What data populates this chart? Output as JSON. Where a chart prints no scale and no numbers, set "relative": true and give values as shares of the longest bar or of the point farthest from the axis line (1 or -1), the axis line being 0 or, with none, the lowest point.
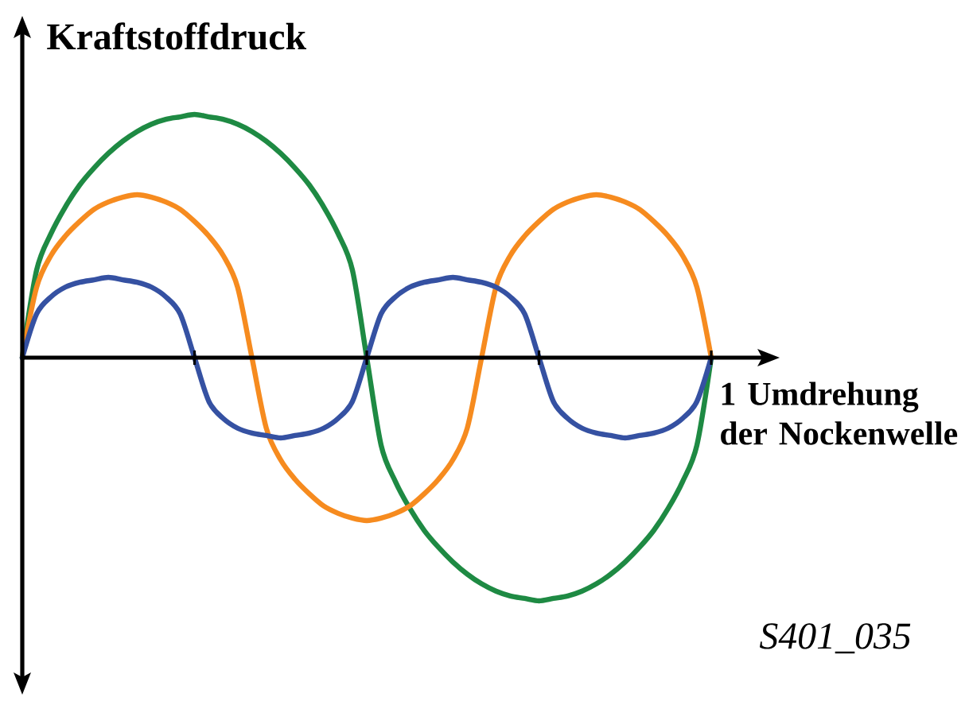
{
  "chart_data": {
    "type": "line",
    "relative": true,
    "ylabel": "Kraftstoffdruck",
    "xlabel": "1 Umdrehung der Nockenwelle",
    "annotations": [
      "S401_035"
    ],
    "marker": "none",
    "line_style": "solid",
    "categories": [
      null,
      null,
      null,
      null,
      null,
      null,
      null,
      null,
      null,
      null,
      null,
      null,
      null,
      null,
      null,
      null,
      null,
      null,
      null,
      null,
      null,
      null,
      null,
      null,
      null,
      null,
      null,
      null,
      null,
      null,
      null,
      null,
      null,
      null,
      null,
      null,
      null,
      null,
      null,
      null,
      null,
      null,
      null,
      null,
      null,
      null,
      null,
      null,
      null
    ],
    "series": [
      {
        "color": "#1e8a43",
        "values": [
          0,
          0.36,
          0.51,
          0.62,
          0.71,
          0.78,
          0.84,
          0.89,
          0.93,
          0.96,
          0.98,
          0.99,
          1,
          0.99,
          0.98,
          0.96,
          0.93,
          0.89,
          0.84,
          0.78,
          0.71,
          0.62,
          0.51,
          0.36,
          0,
          -0.36,
          -0.51,
          -0.62,
          -0.71,
          -0.78,
          -0.84,
          -0.89,
          -0.93,
          -0.96,
          -0.98,
          -0.99,
          -1,
          -0.99,
          -0.98,
          -0.96,
          -0.93,
          -0.89,
          -0.84,
          -0.78,
          -0.71,
          -0.62,
          -0.51,
          -0.36,
          0
        ]
      },
      {
        "color": "#f68b1f",
        "values": [
          0,
          0.29,
          0.42,
          0.5,
          0.56,
          0.61,
          0.64,
          0.66,
          0.67,
          0.66,
          0.64,
          0.61,
          0.56,
          0.5,
          0.42,
          0.29,
          0,
          -0.29,
          -0.42,
          -0.5,
          -0.56,
          -0.61,
          -0.64,
          -0.66,
          -0.67,
          -0.66,
          -0.64,
          -0.61,
          -0.56,
          -0.5,
          -0.42,
          -0.29,
          0,
          0.29,
          0.42,
          0.5,
          0.56,
          0.61,
          0.64,
          0.66,
          0.67,
          0.66,
          0.64,
          0.61,
          0.56,
          0.5,
          0.42,
          0.29,
          0
        ]
      },
      {
        "color": "#3551a2",
        "values": [
          0,
          0.18,
          0.25,
          0.29,
          0.31,
          0.32,
          0.33,
          0.32,
          0.31,
          0.29,
          0.25,
          0.18,
          0,
          -0.18,
          -0.25,
          -0.29,
          -0.31,
          -0.32,
          -0.33,
          -0.32,
          -0.31,
          -0.29,
          -0.25,
          -0.18,
          0,
          0.18,
          0.25,
          0.29,
          0.31,
          0.32,
          0.33,
          0.32,
          0.31,
          0.29,
          0.25,
          0.18,
          0,
          -0.18,
          -0.25,
          -0.29,
          -0.31,
          -0.32,
          -0.33,
          -0.32,
          -0.31,
          -0.29,
          -0.25,
          -0.18,
          0
        ]
      }
    ]
  }
}
